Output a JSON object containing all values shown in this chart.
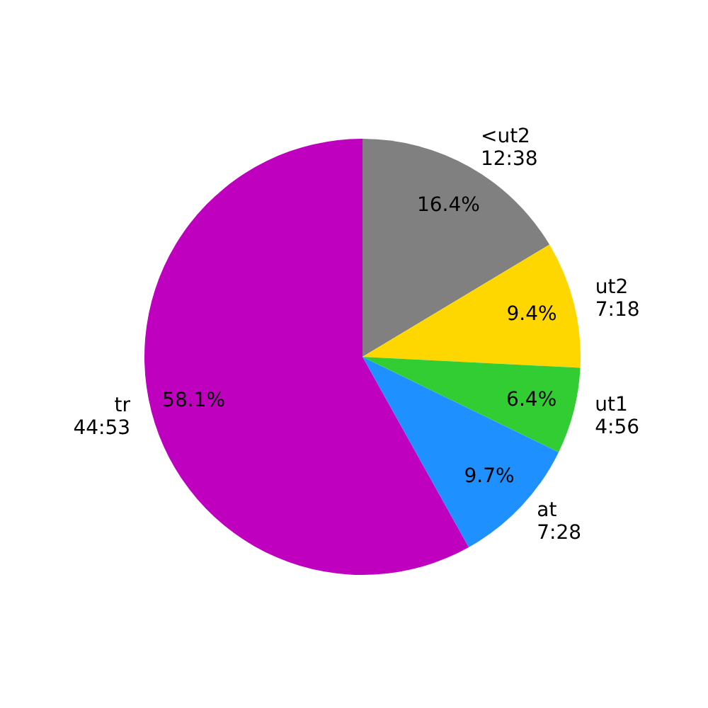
{
  "chart_data": {
    "type": "pie",
    "categories": [
      "<ut2\n12:38",
      "ut2\n7:18",
      "ut1\n4:56",
      "at\n7:28",
      "tr\n44:53"
    ],
    "values": [
      16.4,
      9.4,
      6.4,
      9.7,
      58.1
    ],
    "value_labels": [
      "16.4%",
      "9.4%",
      "6.4%",
      "9.7%",
      "58.1%"
    ],
    "colors": [
      "#808080",
      "#ffd700",
      "#32cd32",
      "#1e90ff",
      "#bf00bf"
    ]
  }
}
